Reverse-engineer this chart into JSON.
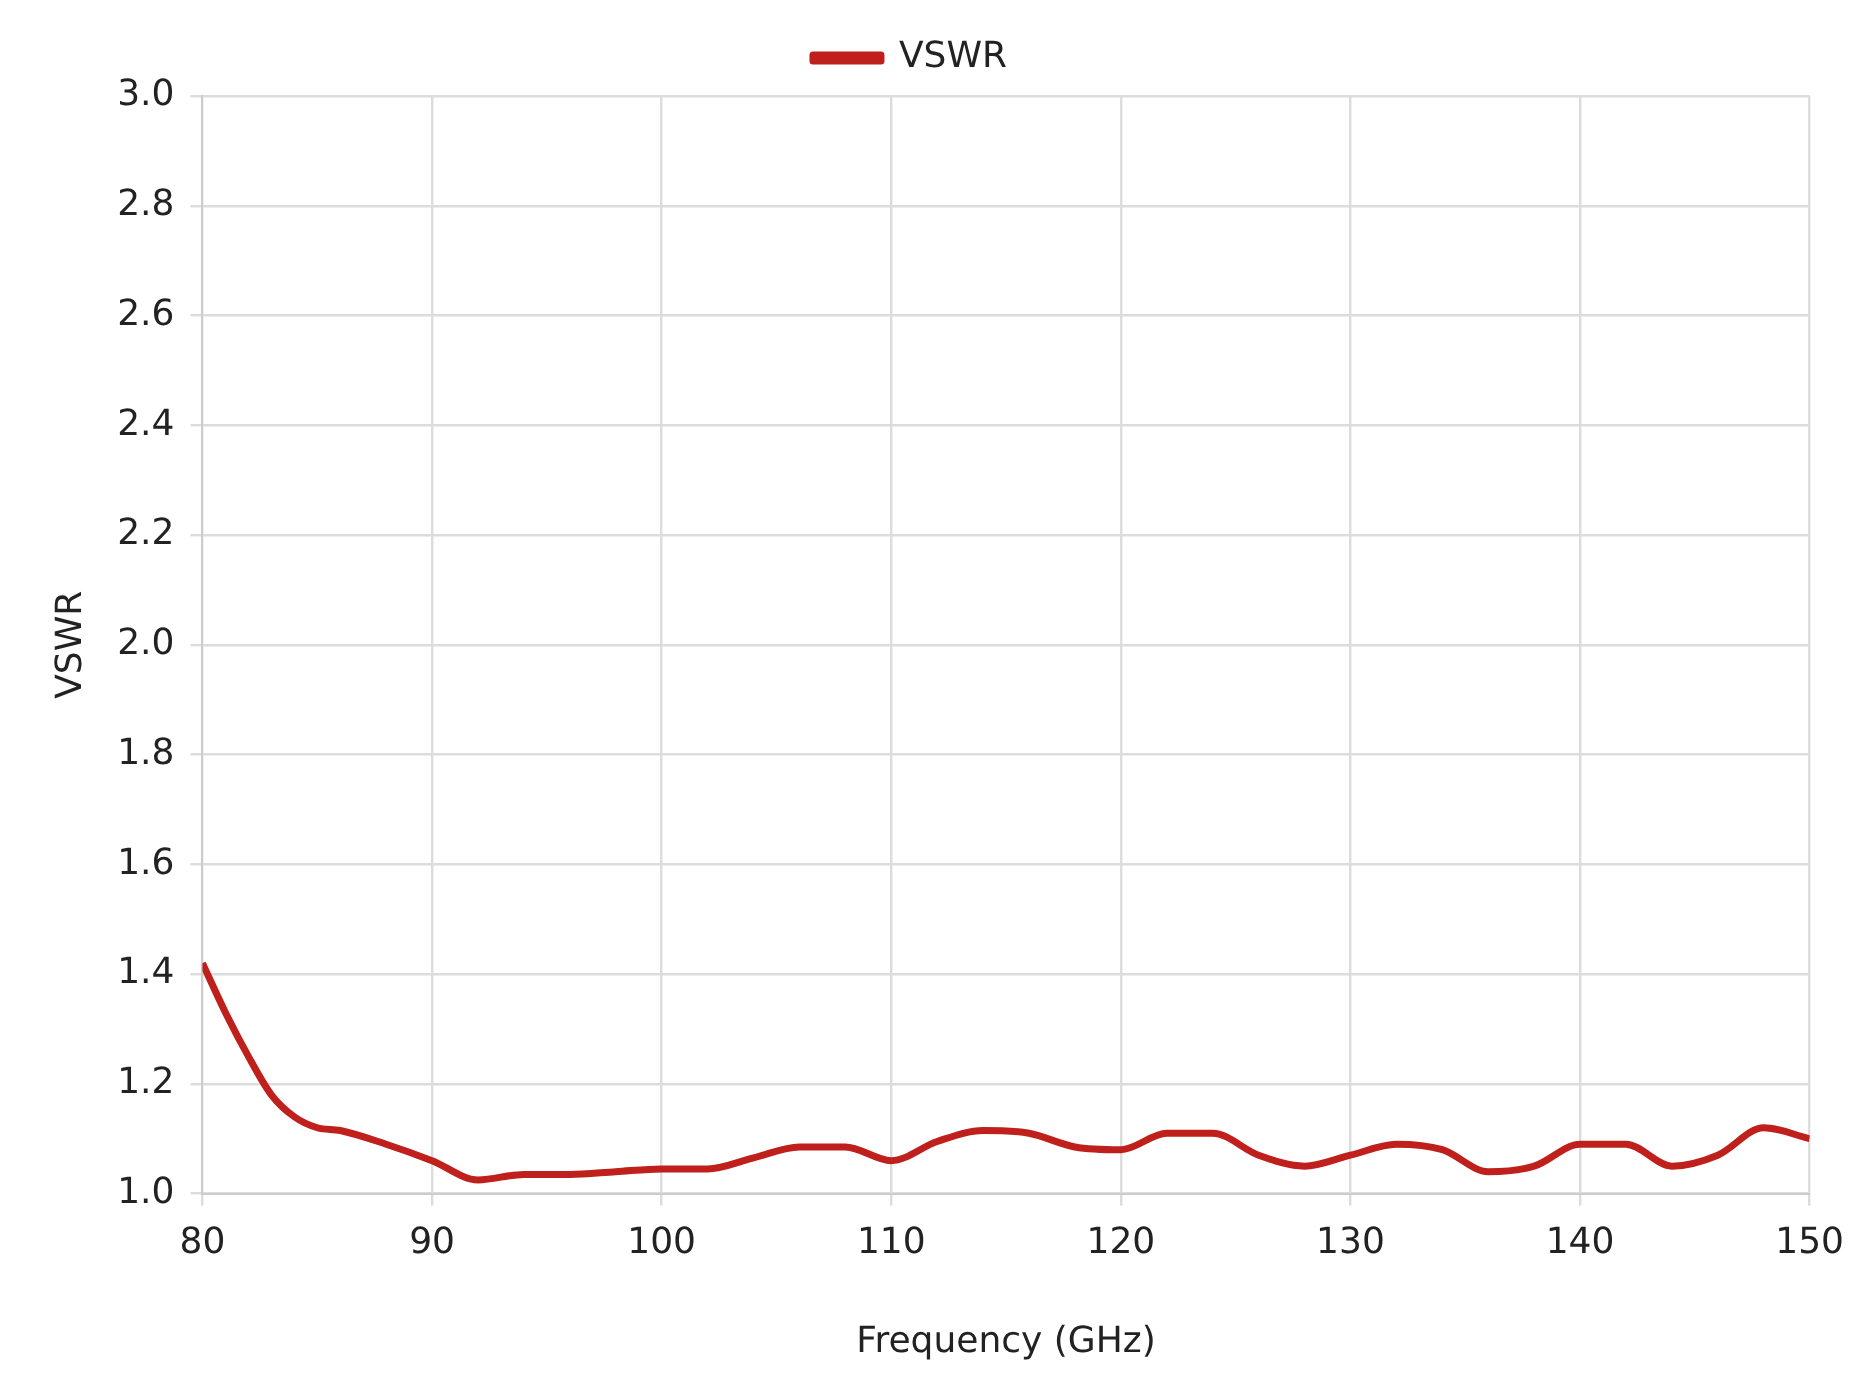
{
  "chart_data": {
    "type": "line",
    "xlabel": "Frequency (GHz)",
    "ylabel": "VSWR",
    "x": [
      80,
      81,
      82,
      83,
      84,
      85,
      86,
      88,
      90,
      92,
      94,
      96,
      98,
      100,
      102,
      104,
      106,
      108,
      110,
      112,
      114,
      116,
      118,
      120,
      122,
      124,
      126,
      128,
      130,
      132,
      134,
      136,
      138,
      140,
      142,
      144,
      146,
      148,
      150
    ],
    "series": [
      {
        "name": "VSWR",
        "color": "#c0201c",
        "values": [
          1.42,
          1.33,
          1.25,
          1.18,
          1.14,
          1.12,
          1.115,
          1.09,
          1.06,
          1.025,
          1.035,
          1.035,
          1.04,
          1.045,
          1.045,
          1.065,
          1.085,
          1.085,
          1.06,
          1.095,
          1.115,
          1.11,
          1.085,
          1.08,
          1.11,
          1.11,
          1.07,
          1.05,
          1.07,
          1.09,
          1.08,
          1.04,
          1.05,
          1.09,
          1.09,
          1.05,
          1.07,
          1.12,
          1.1
        ]
      }
    ],
    "xlim": [
      80,
      150
    ],
    "xticks": [
      80,
      90,
      100,
      110,
      120,
      130,
      140,
      150
    ],
    "ylim": [
      1.0,
      3.0
    ],
    "yticks": [
      {
        "value": 1.0,
        "label": "1.0"
      },
      {
        "value": 1.2,
        "label": "1.2"
      },
      {
        "value": 1.4,
        "label": "1.4"
      },
      {
        "value": 1.6,
        "label": "1.6"
      },
      {
        "value": 1.8,
        "label": "1.8"
      },
      {
        "value": 2.0,
        "label": "2.0"
      },
      {
        "value": 2.2,
        "label": "2.2"
      },
      {
        "value": 2.4,
        "label": "2.4"
      },
      {
        "value": 2.6,
        "label": "2.6"
      },
      {
        "value": 2.8,
        "label": "2.8"
      },
      {
        "value": 3.0,
        "label": "3.0"
      }
    ],
    "grid": true,
    "legend": "top",
    "marker": "none",
    "line_style": "solid"
  }
}
